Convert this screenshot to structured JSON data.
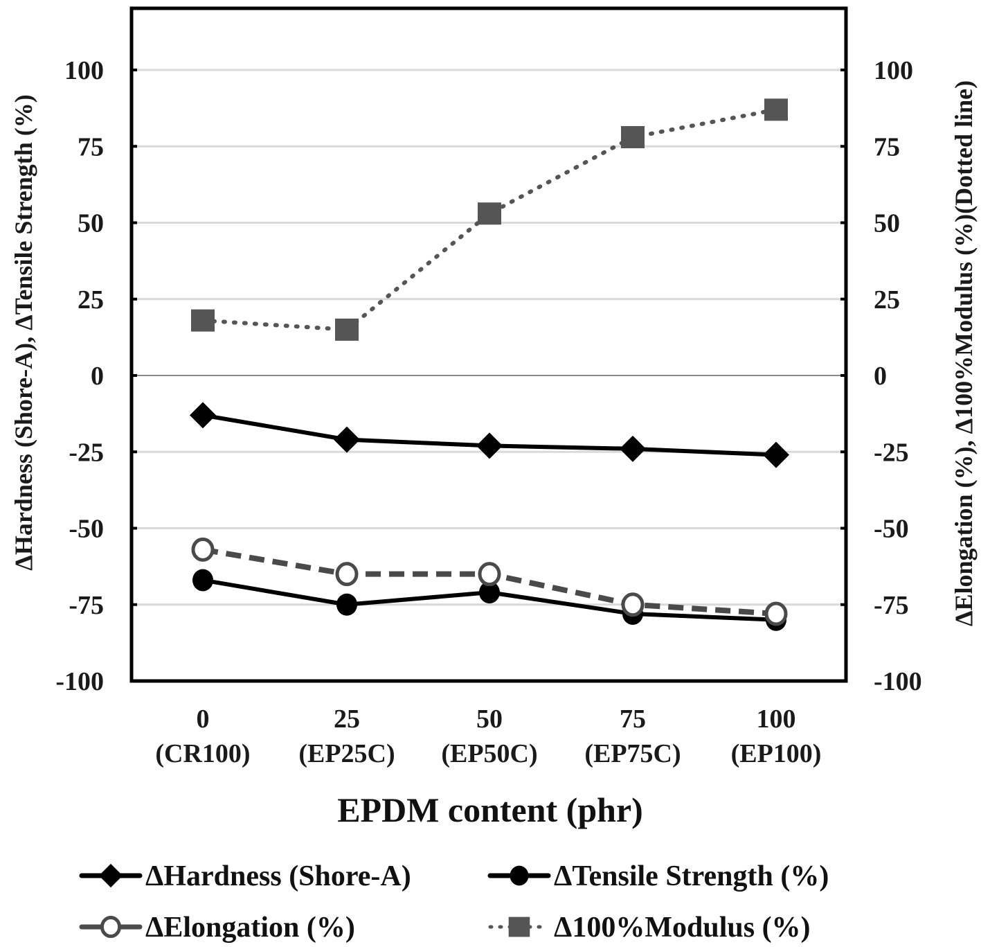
{
  "chart_data": {
    "type": "line",
    "title": "",
    "xlabel": "EPDM content (phr)",
    "ylabel_left": "ΔHardness (Shore-A), ΔTensile Strength (%)",
    "ylabel_right": "ΔElongation (%), Δ100%Modulus (%)(Dotted line)",
    "x": [
      0,
      25,
      50,
      75,
      100
    ],
    "x_tick_labels": [
      "0",
      "25",
      "50",
      "75",
      "100"
    ],
    "x_tick_sublabels": [
      "(CR100)",
      "(EP25C)",
      "(EP50C)",
      "(EP75C)",
      "(EP100)"
    ],
    "ylim": [
      -100,
      120
    ],
    "y_ticks": [
      100,
      75,
      50,
      25,
      0,
      -25,
      -50,
      -75,
      -100
    ],
    "y_tick_labels": [
      "100",
      "75",
      "50",
      "25",
      "0",
      "-25",
      "-50",
      "-75",
      "-100"
    ],
    "grid": true,
    "legend_placement": "bottom",
    "series": [
      {
        "name": "ΔHardness (Shore-A)",
        "marker": "diamond",
        "line": "solid",
        "color": "#000000",
        "axis": "left",
        "values": [
          -13,
          -21,
          -23,
          -24,
          -26
        ]
      },
      {
        "name": "ΔTensile Strength (%)",
        "marker": "circle-filled",
        "line": "solid",
        "color": "#000000",
        "axis": "left",
        "values": [
          -67,
          -75,
          -71,
          -78,
          -80
        ]
      },
      {
        "name": "ΔElongation (%)",
        "marker": "circle-open",
        "line": "dashed",
        "color": "#4a4a4a",
        "axis": "right",
        "values": [
          -57,
          -65,
          -65,
          -75,
          -78
        ]
      },
      {
        "name": "Δ100%Modulus (%)",
        "marker": "square",
        "line": "dotted",
        "color": "#555555",
        "axis": "right",
        "values": [
          18,
          15,
          53,
          78,
          87
        ]
      }
    ]
  }
}
